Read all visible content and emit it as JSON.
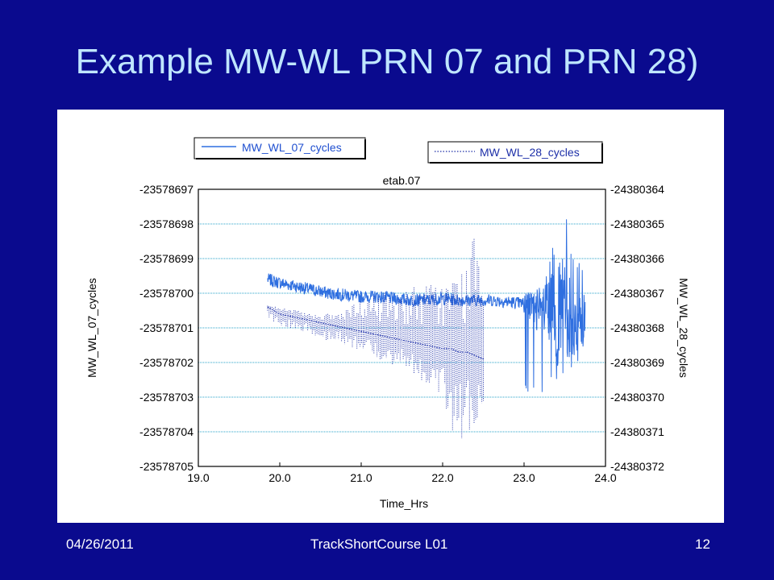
{
  "slide": {
    "title": "Example MW-WL PRN 07 and  PRN 28)",
    "footer_date": "04/26/2011",
    "footer_course": "TrackShortCourse L01",
    "page_number": "12"
  },
  "colors": {
    "background": "#0a0a8e",
    "title": "#bfe6ff",
    "series_07": "#2f6fe0",
    "series_28": "#1d2fa8",
    "grid": "#2aa3c9"
  },
  "chart_data": {
    "type": "line",
    "title": "etab.07",
    "xlabel": "Time_Hrs",
    "ylabel_left": "MW_WL_07_cycles",
    "ylabel_right": "MW_WL_28_cycles",
    "xlim": [
      19.0,
      24.0
    ],
    "ylim_left": [
      -23578705,
      -23578697
    ],
    "ylim_right": [
      -24380372,
      -24380364
    ],
    "x_ticks": [
      "19.0",
      "20.0",
      "21.0",
      "22.0",
      "23.0",
      "24.0"
    ],
    "y_ticks_left": [
      "-23578697",
      "-23578698",
      "-23578699",
      "-23578700",
      "-23578701",
      "-23578702",
      "-23578703",
      "-23578704",
      "-23578705"
    ],
    "y_ticks_right": [
      "-24380364",
      "-24380365",
      "-24380366",
      "-24380367",
      "-24380368",
      "-24380369",
      "-24380370",
      "-24380371",
      "-24380372"
    ],
    "grid": "horizontal dotted",
    "legend_placement": "top",
    "series": [
      {
        "name": "MW_WL_07_cycles",
        "axis": "left",
        "style": "solid",
        "x": [
          19.85,
          20.0,
          20.2,
          20.4,
          20.6,
          20.8,
          21.0,
          21.2,
          21.4,
          21.6,
          21.8,
          22.0,
          22.2,
          22.4,
          22.6,
          22.8,
          23.0,
          23.1,
          23.2,
          23.3,
          23.4,
          23.5,
          23.6,
          23.7,
          23.75
        ],
        "values": [
          -23578699.6,
          -23578699.7,
          -23578699.8,
          -23578699.9,
          -23578700.0,
          -23578700.05,
          -23578700.1,
          -23578700.1,
          -23578700.15,
          -23578700.2,
          -23578700.2,
          -23578700.15,
          -23578700.2,
          -23578700.2,
          -23578700.2,
          -23578700.25,
          -23578700.3,
          -23578700.4,
          -23578700.6,
          -23578700.5,
          -23578700.8,
          -23578700.2,
          -23578700.9,
          -23578700.8,
          -23578701.0
        ],
        "min_x": [
          20.0,
          21.0,
          22.0,
          23.2,
          23.4,
          23.6,
          23.75
        ],
        "min_values": [
          -23578700.0,
          -23578700.3,
          -23578700.5,
          -23578703.2,
          -23578702.5,
          -23578702.1,
          -23578702.2
        ],
        "max_x": [
          20.0,
          21.0,
          22.0,
          23.2,
          23.5,
          23.6,
          23.75
        ],
        "max_values": [
          -23578699.4,
          -23578699.8,
          -23578699.9,
          -23578699.8,
          -23578697.5,
          -23578698.8,
          -23578699.2
        ]
      },
      {
        "name": "MW_WL_28_cycles",
        "axis": "right",
        "style": "dotted",
        "x": [
          19.85,
          20.0,
          20.2,
          20.4,
          20.6,
          20.8,
          21.0,
          21.2,
          21.4,
          21.6,
          21.8,
          22.0,
          22.1,
          22.2,
          22.3,
          22.4,
          22.5
        ],
        "values": [
          -24380367.4,
          -24380367.6,
          -24380367.7,
          -24380367.8,
          -24380367.9,
          -24380368.0,
          -24380368.1,
          -24380368.2,
          -24380368.3,
          -24380368.4,
          -24380368.5,
          -24380368.6,
          -24380368.6,
          -24380368.7,
          -24380368.7,
          -24380368.8,
          -24380368.9
        ],
        "min_values": [
          -24380367.8,
          -24380368.0,
          -24380368.1,
          -24380368.2,
          -24380368.4,
          -24380368.5,
          -24380368.7,
          -24380368.9,
          -24380369.1,
          -24380369.3,
          -24380369.6,
          -24380370.0,
          -24380371.3,
          -24380371.2,
          -24380371.2,
          -24380371.5,
          -24380371.0
        ],
        "max_values": [
          -24380367.3,
          -24380367.4,
          -24380367.5,
          -24380367.6,
          -24380367.6,
          -24380367.5,
          -24380367.2,
          -24380367.0,
          -24380366.9,
          -24380366.8,
          -24380366.7,
          -24380366.6,
          -24380366.5,
          -24380366.3,
          -24380366.1,
          -24380365.0,
          -24380366.8
        ]
      }
    ]
  }
}
